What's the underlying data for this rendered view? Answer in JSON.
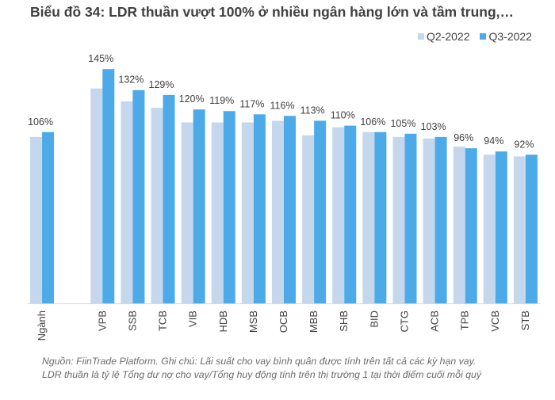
{
  "chart_data": {
    "type": "bar",
    "title": "Biểu đồ 34: LDR thuần vượt 100% ở nhiều ngân hàng lớn và tầm trung,…",
    "xlabel": "",
    "ylabel": "",
    "ylim": [
      0,
      150
    ],
    "grid": false,
    "legend_position": "top-right",
    "categories": [
      "Ngành",
      "",
      "VPB",
      "SSB",
      "TCB",
      "VIB",
      "HDB",
      "MSB",
      "OCB",
      "MBB",
      "SHB",
      "BID",
      "CTG",
      "ACB",
      "TPB",
      "VCB",
      "STB"
    ],
    "series": [
      {
        "name": "Q2-2022",
        "color": "#c5d7ec",
        "values": [
          103,
          null,
          133,
          125,
          121,
          112,
          112,
          112,
          113,
          104,
          109,
          106,
          103,
          102,
          97,
          92,
          91
        ]
      },
      {
        "name": "Q3-2022",
        "color": "#4daae8",
        "values": [
          106,
          null,
          145,
          132,
          129,
          120,
          119,
          117,
          116,
          113,
          110,
          106,
          105,
          103,
          96,
          94,
          92
        ]
      }
    ],
    "data_labels": [
      "106%",
      "",
      "145%",
      "132%",
      "129%",
      "120%",
      "119%",
      "117%",
      "116%",
      "113%",
      "110%",
      "106%",
      "105%",
      "103%",
      "96%",
      "94%",
      "92%"
    ]
  },
  "legend": {
    "items": [
      {
        "label": "Q2-2022",
        "color": "#c5d7ec"
      },
      {
        "label": "Q3-2022",
        "color": "#4daae8"
      }
    ]
  },
  "note": {
    "line1": "Nguồn: FiinTrade Platform. Ghi chú: Lãi suất cho vay bình quân được tính trên tất cả các kỳ hạn vay.",
    "line2": "LDR thuần là tỷ lệ Tổng dư nợ cho vay/Tổng huy động tính trên thị trường 1 tại thời điểm cuối mỗi quý"
  }
}
